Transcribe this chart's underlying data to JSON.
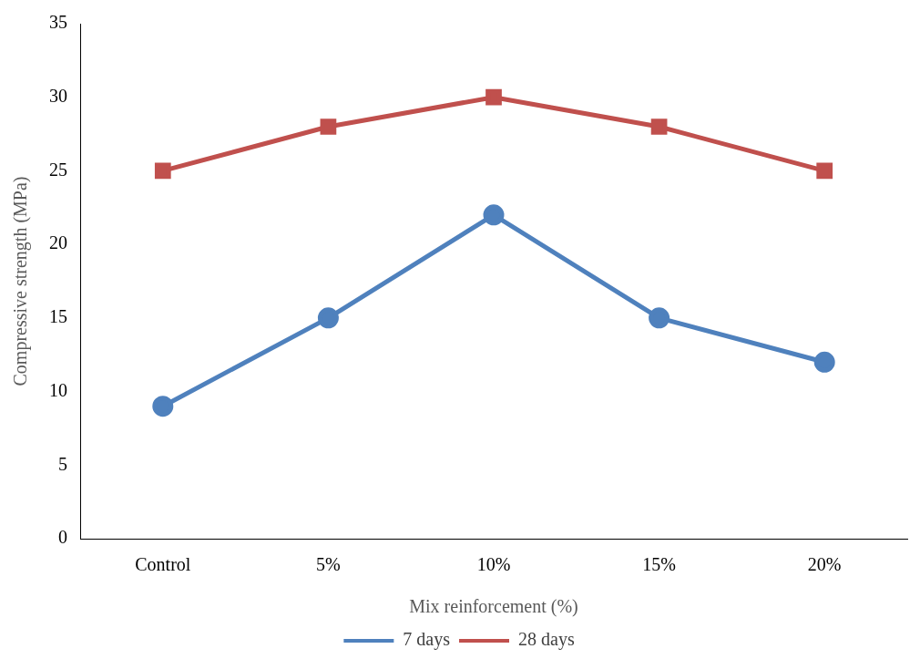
{
  "chart_data": {
    "type": "line",
    "xlabel": "Mix reinforcement (%)",
    "ylabel": "Compressive strength (MPa)",
    "categories": [
      "Control",
      "5%",
      "10%",
      "15%",
      "20%"
    ],
    "series": [
      {
        "name": "7 days",
        "color": "#4f81bd",
        "marker": "circle",
        "values": [
          9,
          15,
          22,
          15,
          12
        ]
      },
      {
        "name": "28 days",
        "color": "#c0504d",
        "marker": "square",
        "values": [
          25,
          28,
          30,
          28,
          25
        ]
      }
    ],
    "ylim": [
      0,
      35
    ],
    "yticks": [
      0,
      5,
      10,
      15,
      20,
      25,
      30,
      35
    ],
    "grid": false,
    "legend": "bottom",
    "line_style": "solid"
  }
}
